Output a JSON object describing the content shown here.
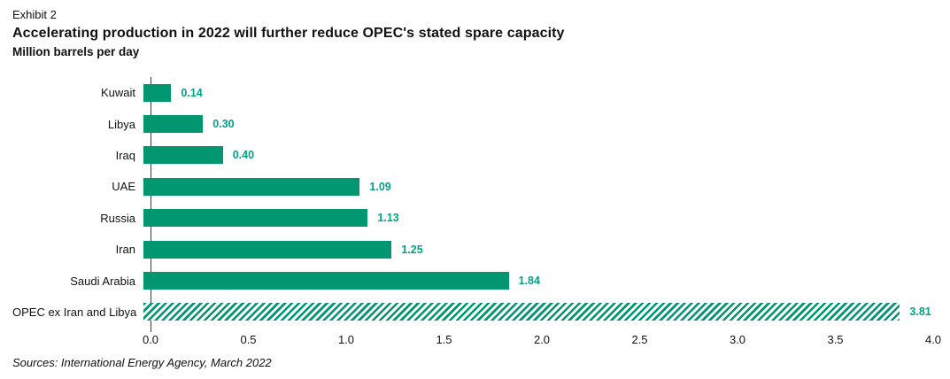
{
  "header": {
    "exhibit_label": "Exhibit 2"
  },
  "chart_data": {
    "type": "bar",
    "orientation": "horizontal",
    "title": "Accelerating production in 2022 will further reduce OPEC's stated spare capacity",
    "units_label": "Million barrels per day",
    "categories": [
      "Kuwait",
      "Libya",
      "Iraq",
      "UAE",
      "Russia",
      "Iran",
      "Saudi Arabia",
      "OPEC ex Iran and Libya"
    ],
    "values": [
      0.14,
      0.3,
      0.4,
      1.09,
      1.13,
      1.25,
      1.84,
      3.81
    ],
    "value_labels": [
      "0.14",
      "0.30",
      "0.40",
      "1.09",
      "1.13",
      "1.25",
      "1.84",
      "3.81"
    ],
    "hatched": [
      false,
      false,
      false,
      false,
      false,
      false,
      false,
      true
    ],
    "xlim": [
      0.0,
      4.0
    ],
    "x_ticks": [
      "0.0",
      "0.5",
      "1.0",
      "1.5",
      "2.0",
      "2.5",
      "3.0",
      "3.5",
      "4.0"
    ],
    "x_tick_values": [
      0.0,
      0.5,
      1.0,
      1.5,
      2.0,
      2.5,
      3.0,
      3.5,
      4.0
    ],
    "grid": false,
    "legend": "none",
    "bar_color": "#00966F",
    "value_color": "#00A386",
    "axis_color": "#3d3d3d"
  },
  "footer": {
    "source": "Sources: International Energy Agency, March 2022"
  }
}
